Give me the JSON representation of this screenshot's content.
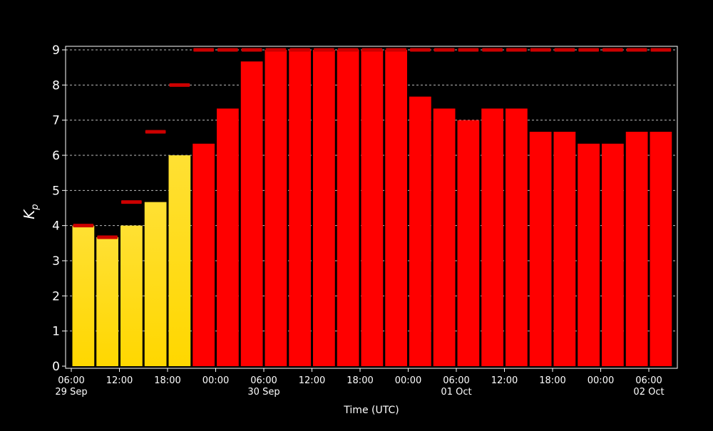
{
  "chart_data": {
    "type": "bar",
    "ylabel": "K",
    "ylabel_sub": "p",
    "xlabel": "Time (UTC)",
    "ylim": [
      0,
      9
    ],
    "yticks": [
      0,
      1,
      2,
      3,
      4,
      5,
      6,
      7,
      8,
      9
    ],
    "grid": "horizontal dashed",
    "colors": {
      "background": "#000000",
      "observed": "#ffd700",
      "forecast": "#ff0000",
      "max_marker": "#cc0000"
    },
    "x_start": "2024-09-29 06:00",
    "bar_hours": 3,
    "bars": [
      {
        "time": "2024-09-29 06:00",
        "kp": 4.0,
        "max": 4.0,
        "kind": "observed"
      },
      {
        "time": "2024-09-29 09:00",
        "kp": 3.67,
        "max": 3.67,
        "kind": "observed"
      },
      {
        "time": "2024-09-29 12:00",
        "kp": 4.0,
        "max": 4.67,
        "kind": "observed"
      },
      {
        "time": "2024-09-29 15:00",
        "kp": 4.67,
        "max": 6.67,
        "kind": "observed"
      },
      {
        "time": "2024-09-29 18:00",
        "kp": 6.0,
        "max": 8.0,
        "kind": "observed"
      },
      {
        "time": "2024-09-29 21:00",
        "kp": 6.33,
        "max": 9.0,
        "kind": "forecast"
      },
      {
        "time": "2024-09-30 00:00",
        "kp": 7.33,
        "max": 9.0,
        "kind": "forecast"
      },
      {
        "time": "2024-09-30 03:00",
        "kp": 8.67,
        "max": 9.0,
        "kind": "forecast"
      },
      {
        "time": "2024-09-30 06:00",
        "kp": 9.0,
        "max": 9.0,
        "kind": "forecast"
      },
      {
        "time": "2024-09-30 09:00",
        "kp": 9.0,
        "max": 9.0,
        "kind": "forecast"
      },
      {
        "time": "2024-09-30 12:00",
        "kp": 9.0,
        "max": 9.0,
        "kind": "forecast"
      },
      {
        "time": "2024-09-30 15:00",
        "kp": 9.0,
        "max": 9.0,
        "kind": "forecast"
      },
      {
        "time": "2024-09-30 18:00",
        "kp": 9.0,
        "max": 9.0,
        "kind": "forecast"
      },
      {
        "time": "2024-09-30 21:00",
        "kp": 9.0,
        "max": 9.0,
        "kind": "forecast"
      },
      {
        "time": "2024-10-01 00:00",
        "kp": 7.67,
        "max": 9.0,
        "kind": "forecast"
      },
      {
        "time": "2024-10-01 03:00",
        "kp": 7.33,
        "max": 9.0,
        "kind": "forecast"
      },
      {
        "time": "2024-10-01 06:00",
        "kp": 7.0,
        "max": 9.0,
        "kind": "forecast"
      },
      {
        "time": "2024-10-01 09:00",
        "kp": 7.33,
        "max": 9.0,
        "kind": "forecast"
      },
      {
        "time": "2024-10-01 12:00",
        "kp": 7.33,
        "max": 9.0,
        "kind": "forecast"
      },
      {
        "time": "2024-10-01 15:00",
        "kp": 6.67,
        "max": 9.0,
        "kind": "forecast"
      },
      {
        "time": "2024-10-01 18:00",
        "kp": 6.67,
        "max": 9.0,
        "kind": "forecast"
      },
      {
        "time": "2024-10-01 21:00",
        "kp": 6.33,
        "max": 9.0,
        "kind": "forecast"
      },
      {
        "time": "2024-10-02 00:00",
        "kp": 6.33,
        "max": 9.0,
        "kind": "forecast"
      },
      {
        "time": "2024-10-02 03:00",
        "kp": 6.67,
        "max": 9.0,
        "kind": "forecast"
      },
      {
        "time": "2024-10-02 06:00",
        "kp": 6.67,
        "max": 9.0,
        "kind": "forecast"
      }
    ],
    "xticks": [
      {
        "label": "06:00",
        "sub": "29 Sep",
        "hour": 0
      },
      {
        "label": "12:00",
        "sub": "",
        "hour": 6
      },
      {
        "label": "18:00",
        "sub": "",
        "hour": 12
      },
      {
        "label": "00:00",
        "sub": "",
        "hour": 18
      },
      {
        "label": "06:00",
        "sub": "30 Sep",
        "hour": 24
      },
      {
        "label": "12:00",
        "sub": "",
        "hour": 30
      },
      {
        "label": "18:00",
        "sub": "",
        "hour": 36
      },
      {
        "label": "00:00",
        "sub": "",
        "hour": 42
      },
      {
        "label": "06:00",
        "sub": "01 Oct",
        "hour": 48
      },
      {
        "label": "12:00",
        "sub": "",
        "hour": 54
      },
      {
        "label": "18:00",
        "sub": "",
        "hour": 60
      },
      {
        "label": "00:00",
        "sub": "",
        "hour": 66
      },
      {
        "label": "06:00",
        "sub": "02 Oct",
        "hour": 72
      }
    ]
  }
}
